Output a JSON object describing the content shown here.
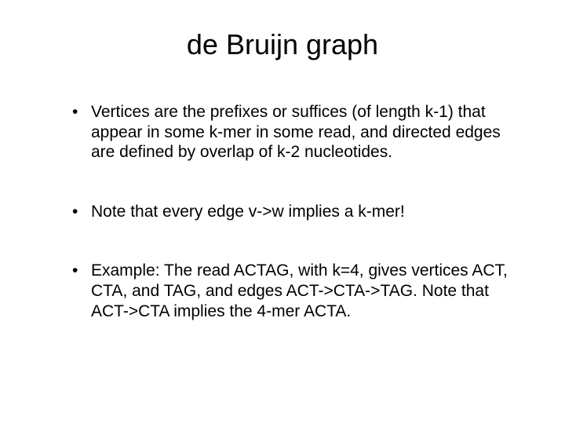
{
  "slide": {
    "title": "de Bruijn graph",
    "title_fontsize": 36,
    "body_fontsize": 21,
    "text_color": "#000000",
    "background_color": "#ffffff",
    "font_family": "Arial",
    "bullets": [
      "Vertices are the prefixes or suffices (of length k-1) that appear in some k-mer in some read, and directed edges are defined by overlap of k-2 nucleotides.",
      "Note that every edge v->w implies a k-mer!",
      "Example: The read ACTAG, with k=4, gives vertices ACT, CTA, and TAG, and edges ACT->CTA->TAG. Note that ACT->CTA implies the 4-mer ACTA."
    ]
  }
}
